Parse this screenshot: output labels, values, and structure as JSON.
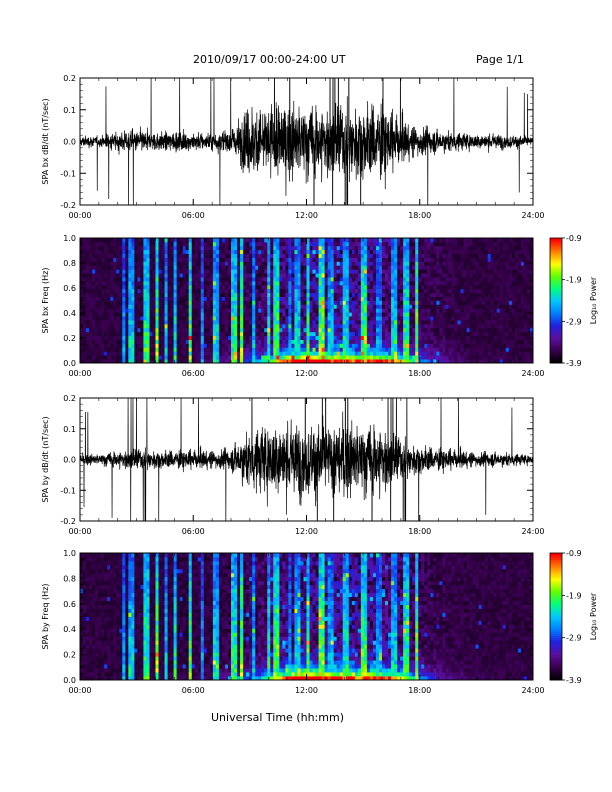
{
  "header": {
    "title": "2010/09/17  00:00-24:00 UT",
    "page_label": "Page 1/1"
  },
  "x_axis_title": "Universal Time (hh:mm)",
  "colors": {
    "waveform": "#000000",
    "background": "#ffffff",
    "colormap": [
      "#000000",
      "#3a0050",
      "#5a10a0",
      "#2020e0",
      "#0080ff",
      "#00c8ff",
      "#00ff80",
      "#60ff00",
      "#ffff00",
      "#ff8000",
      "#ff0000"
    ]
  },
  "chart_data": [
    {
      "type": "line",
      "ylabel": "SPA bx dB/dt (nT/sec)",
      "xlim": [
        "00:00",
        "24:00"
      ],
      "ylim": [
        -0.2,
        0.2
      ],
      "x_ticks": [
        "00:00",
        "06:00",
        "12:00",
        "18:00",
        "24:00"
      ],
      "y_ticks": [
        "-0.2",
        "-0.1",
        "0.0",
        "0.1",
        "0.2"
      ],
      "series": [
        {
          "x_hours": [
            0,
            1,
            2,
            3,
            4,
            5,
            6,
            7,
            8,
            8.5,
            9,
            9.5,
            10,
            10.5,
            11,
            11.5,
            12,
            12.5,
            13,
            13.5,
            14,
            14.5,
            15,
            15.5,
            16,
            16.5,
            17,
            17.5,
            18,
            19,
            20,
            21,
            22,
            23,
            24
          ],
          "amplitude": [
            0.03,
            0.03,
            0.05,
            0.06,
            0.05,
            0.05,
            0.05,
            0.05,
            0.06,
            0.12,
            0.2,
            0.2,
            0.2,
            0.2,
            0.2,
            0.2,
            0.2,
            0.2,
            0.2,
            0.2,
            0.2,
            0.2,
            0.2,
            0.2,
            0.2,
            0.15,
            0.12,
            0.09,
            0.08,
            0.06,
            0.05,
            0.04,
            0.04,
            0.035,
            0.025
          ]
        }
      ]
    },
    {
      "type": "heatmap",
      "ylabel": "SPA bx Freq (Hz)",
      "xlim": [
        "00:00",
        "24:00"
      ],
      "ylim": [
        0.0,
        1.0
      ],
      "x_ticks": [
        "00:00",
        "06:00",
        "12:00",
        "18:00",
        "24:00"
      ],
      "y_ticks": [
        "0.0",
        "0.2",
        "0.4",
        "0.6",
        "0.8",
        "1.0"
      ],
      "colorbar": {
        "label": "Log₁₀ Power",
        "range": [
          -3.9,
          -0.9
        ],
        "ticks": [
          "-0.9",
          "-1.9",
          "-2.9",
          "-3.9"
        ]
      },
      "spikes_hours": [
        2.3,
        2.7,
        3.5,
        4.1,
        4.6,
        5.0,
        5.8,
        6.5,
        7.2,
        8.2,
        8.6,
        9.2,
        10.0,
        10.4,
        11.1,
        11.5,
        12.1,
        12.8,
        13.3,
        14.1,
        15.0,
        15.8,
        16.6,
        17.3,
        17.8
      ],
      "low_freq_peak_hours": [
        11.5,
        16.5
      ]
    },
    {
      "type": "line",
      "ylabel": "SPA by dB/dt (nT/sec)",
      "xlim": [
        "00:00",
        "24:00"
      ],
      "ylim": [
        -0.2,
        0.2
      ],
      "x_ticks": [
        "00:00",
        "06:00",
        "12:00",
        "18:00",
        "24:00"
      ],
      "y_ticks": [
        "-0.2",
        "-0.1",
        "0.0",
        "0.1",
        "0.2"
      ],
      "series": [
        {
          "x_hours": [
            0,
            1,
            2,
            3,
            4,
            5,
            6,
            7,
            8,
            8.5,
            9,
            9.5,
            10,
            10.5,
            11,
            11.5,
            12,
            12.5,
            13,
            13.5,
            14,
            14.5,
            15,
            15.5,
            16,
            16.5,
            17,
            17.5,
            18,
            19,
            20,
            21,
            22,
            23,
            24
          ],
          "amplitude": [
            0.03,
            0.03,
            0.05,
            0.06,
            0.05,
            0.05,
            0.05,
            0.05,
            0.06,
            0.12,
            0.15,
            0.18,
            0.2,
            0.2,
            0.2,
            0.2,
            0.2,
            0.2,
            0.2,
            0.2,
            0.2,
            0.2,
            0.2,
            0.2,
            0.2,
            0.15,
            0.12,
            0.09,
            0.08,
            0.06,
            0.05,
            0.04,
            0.04,
            0.035,
            0.025
          ]
        }
      ]
    },
    {
      "type": "heatmap",
      "ylabel": "SPA by Freq (Hz)",
      "xlim": [
        "00:00",
        "24:00"
      ],
      "ylim": [
        0.0,
        1.0
      ],
      "x_ticks": [
        "00:00",
        "06:00",
        "12:00",
        "18:00",
        "24:00"
      ],
      "y_ticks": [
        "0.0",
        "0.2",
        "0.4",
        "0.6",
        "0.8",
        "1.0"
      ],
      "colorbar": {
        "label": "Log₁₀ Power",
        "range": [
          -3.9,
          -0.9
        ],
        "ticks": [
          "-0.9",
          "-1.9",
          "-2.9",
          "-3.9"
        ]
      },
      "spikes_hours": [
        2.3,
        2.7,
        3.5,
        4.1,
        4.6,
        5.0,
        5.8,
        6.5,
        7.2,
        8.2,
        8.6,
        9.2,
        10.0,
        10.4,
        11.1,
        11.5,
        12.1,
        12.8,
        13.3,
        14.1,
        15.0,
        15.8,
        16.6,
        17.3,
        17.8
      ],
      "low_freq_peak_hours": [
        11.5,
        16.5
      ]
    }
  ]
}
